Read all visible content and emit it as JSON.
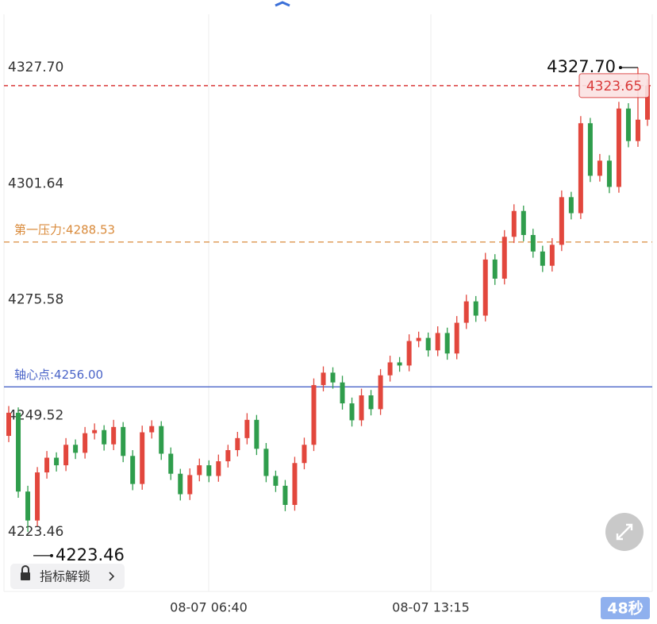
{
  "chart_data": {
    "type": "candlestick",
    "ylim": [
      4210.07,
      4339.66
    ],
    "yticks": [
      {
        "value": 4327.7,
        "label": "4327.70"
      },
      {
        "value": 4301.64,
        "label": "4301.64"
      },
      {
        "value": 4275.58,
        "label": "4275.58"
      },
      {
        "value": 4249.52,
        "label": "4249.52"
      },
      {
        "value": 4223.46,
        "label": "4223.46"
      }
    ],
    "x_labels": [
      "08-07 06:40",
      "08-07 13:15"
    ],
    "up_color": "#e2473d",
    "down_color": "#2f9d4c",
    "open": [
      4245.0,
      4250.2,
      4232.5,
      4226.0,
      4236.8,
      4240.1,
      4238.4,
      4243.0,
      4241.2,
      4245.6,
      4246.3,
      4243.1,
      4247.0,
      4240.5,
      4234.2,
      4245.8,
      4247.2,
      4241.0,
      4236.5,
      4231.9,
      4236.2,
      4238.4,
      4236.0,
      4239.3,
      4241.8,
      4244.5,
      4248.6,
      4242.1,
      4236.0,
      4233.8,
      4229.5,
      4238.9,
      4243.0,
      4256.4,
      4259.2,
      4257.0,
      4252.3,
      4248.5,
      4254.1,
      4251.0,
      4258.6,
      4261.5,
      4260.8,
      4266.3,
      4267.0,
      4264.2,
      4268.1,
      4263.5,
      4270.4,
      4275.2,
      4272.0,
      4284.6,
      4280.3,
      4289.7,
      4295.5,
      4290.1,
      4286.4,
      4283.2,
      4287.9,
      4298.6,
      4295.0,
      4315.2,
      4303.4,
      4306.8,
      4300.9,
      4318.5,
      4311.2,
      4316.0
    ],
    "high": [
      4251.7,
      4251.4,
      4233.8,
      4238.0,
      4241.6,
      4241.3,
      4244.5,
      4244.2,
      4247.0,
      4247.8,
      4247.4,
      4248.6,
      4248.1,
      4241.8,
      4247.3,
      4248.5,
      4248.3,
      4242.4,
      4237.6,
      4237.7,
      4239.9,
      4239.5,
      4240.8,
      4243.0,
      4245.9,
      4250.1,
      4249.7,
      4243.4,
      4237.2,
      4235.1,
      4240.3,
      4244.6,
      4257.9,
      4260.6,
      4260.4,
      4258.5,
      4253.6,
      4255.6,
      4255.3,
      4260.0,
      4263.0,
      4262.7,
      4267.8,
      4268.4,
      4268.2,
      4269.6,
      4269.3,
      4271.9,
      4276.7,
      4276.4,
      4286.1,
      4285.8,
      4291.2,
      4297.0,
      4296.7,
      4291.5,
      4287.7,
      4289.4,
      4300.1,
      4299.8,
      4316.8,
      4316.4,
      4308.3,
      4308.0,
      4320.0,
      4319.7,
      4327.7,
      4325.1
    ],
    "low": [
      4243.6,
      4231.1,
      4223.46,
      4224.7,
      4235.4,
      4237.0,
      4237.1,
      4239.8,
      4239.9,
      4244.2,
      4241.7,
      4241.8,
      4239.1,
      4232.8,
      4232.9,
      4244.4,
      4239.6,
      4235.1,
      4230.5,
      4230.6,
      4234.8,
      4234.6,
      4234.7,
      4237.9,
      4240.4,
      4243.1,
      4240.7,
      4234.6,
      4232.4,
      4228.1,
      4228.2,
      4237.5,
      4241.6,
      4255.0,
      4255.6,
      4250.9,
      4247.1,
      4247.2,
      4249.6,
      4249.7,
      4257.2,
      4259.4,
      4259.5,
      4264.9,
      4262.8,
      4262.9,
      4262.1,
      4262.2,
      4269.0,
      4270.6,
      4270.7,
      4278.9,
      4279.0,
      4288.3,
      4288.7,
      4285.0,
      4281.8,
      4281.9,
      4286.5,
      4293.6,
      4293.7,
      4302.0,
      4302.1,
      4299.5,
      4299.6,
      4309.8,
      4309.9,
      4314.6
    ],
    "close": [
      4250.2,
      4232.5,
      4226.0,
      4236.8,
      4240.1,
      4238.4,
      4243.0,
      4241.2,
      4245.6,
      4246.3,
      4243.1,
      4247.0,
      4240.5,
      4234.2,
      4245.8,
      4247.2,
      4241.0,
      4236.5,
      4231.9,
      4236.2,
      4238.4,
      4236.0,
      4239.3,
      4241.8,
      4244.5,
      4248.6,
      4242.1,
      4236.0,
      4233.8,
      4229.5,
      4238.9,
      4243.0,
      4256.4,
      4259.2,
      4257.0,
      4252.3,
      4248.5,
      4254.1,
      4251.0,
      4258.6,
      4261.5,
      4260.8,
      4266.3,
      4267.0,
      4264.2,
      4268.1,
      4263.5,
      4270.4,
      4275.2,
      4272.0,
      4284.6,
      4280.3,
      4289.7,
      4295.5,
      4290.1,
      4286.4,
      4283.2,
      4287.9,
      4298.6,
      4295.0,
      4315.2,
      4303.4,
      4306.8,
      4300.9,
      4318.5,
      4311.2,
      4316.0,
      4323.65
    ],
    "current": {
      "value": 4323.65,
      "label": "4323.65",
      "color": "#d93a3a"
    },
    "levels": [
      {
        "value": 4288.53,
        "label": "第一压力:4288.53",
        "color": "#d98a3a"
      },
      {
        "value": 4256.0,
        "label": "轴心点:4256.00",
        "color": "#4a64c8"
      }
    ],
    "max_marker": {
      "value": 4327.7,
      "label": "4327.70"
    },
    "min_marker": {
      "value": 4223.46,
      "label": "4223.46"
    }
  },
  "ui": {
    "unlock_button": "指标解锁",
    "timer": "48秒"
  }
}
